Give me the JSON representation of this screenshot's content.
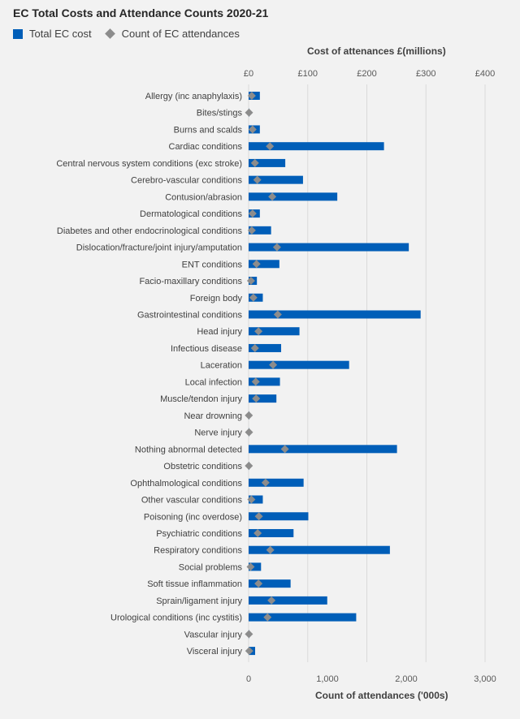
{
  "chart_data": {
    "type": "bar",
    "title": "EC Total Costs and Attendance Counts 2020-21",
    "legend": {
      "placement": "top-left"
    },
    "grid": true,
    "categories": [
      "Allergy (inc anaphylaxis)",
      "Bites/stings",
      "Burns and scalds",
      "Cardiac conditions",
      "Central nervous system conditions (exc stroke)",
      "Cerebro-vascular conditions",
      "Contusion/abrasion",
      "Dermatological conditions",
      "Diabetes and other endocrinological conditions",
      "Dislocation/fracture/joint injury/amputation",
      "ENT conditions",
      "Facio-maxillary conditions",
      "Foreign body",
      "Gastrointestinal conditions",
      "Head injury",
      "Infectious disease",
      "Laceration",
      "Local infection",
      "Muscle/tendon injury",
      "Near drowning",
      "Nerve injury",
      "Nothing abnormal detected",
      "Obstetric conditions",
      "Ophthalmological  conditions",
      "Other vascular conditions",
      "Poisoning (inc overdose)",
      "Psychiatric conditions",
      "Respiratory conditions",
      "Social problems",
      "Soft tissue inflammation",
      "Sprain/ligament injury",
      "Urological conditions (inc cystitis)",
      "Vascular injury",
      "Visceral injury"
    ],
    "series": [
      {
        "name": "Total EC cost",
        "axis": "top",
        "type": "bar",
        "color": "#005EB8",
        "values": [
          19,
          1,
          19,
          229,
          62,
          92,
          150,
          19,
          38,
          271,
          52,
          14,
          24,
          291,
          86,
          55,
          170,
          53,
          47,
          1,
          1,
          251,
          1,
          93,
          24,
          101,
          76,
          239,
          21,
          71,
          133,
          182,
          1,
          11
        ]
      },
      {
        "name": "Count of EC attendances",
        "axis": "bottom",
        "type": "scatter",
        "marker": "diamond",
        "color": "#8c8c8c",
        "values": [
          40,
          5,
          50,
          270,
          80,
          110,
          300,
          50,
          40,
          360,
          100,
          30,
          60,
          370,
          125,
          80,
          310,
          90,
          95,
          3,
          5,
          460,
          3,
          215,
          35,
          130,
          115,
          275,
          25,
          125,
          290,
          240,
          4,
          8
        ]
      }
    ],
    "x_top": {
      "label": "Cost of attenances £(millions)",
      "range": [
        0,
        400
      ],
      "ticks": [
        0,
        100,
        200,
        300,
        400
      ],
      "tick_labels": [
        "£0",
        "£100",
        "£200",
        "£300",
        "£400"
      ]
    },
    "x_bottom": {
      "label": "Count of attendances ('000s)",
      "range": [
        0,
        3000
      ],
      "ticks": [
        0,
        1000,
        2000,
        3000
      ],
      "tick_labels": [
        "0",
        "1,000",
        "2,000",
        "3,000"
      ]
    }
  }
}
